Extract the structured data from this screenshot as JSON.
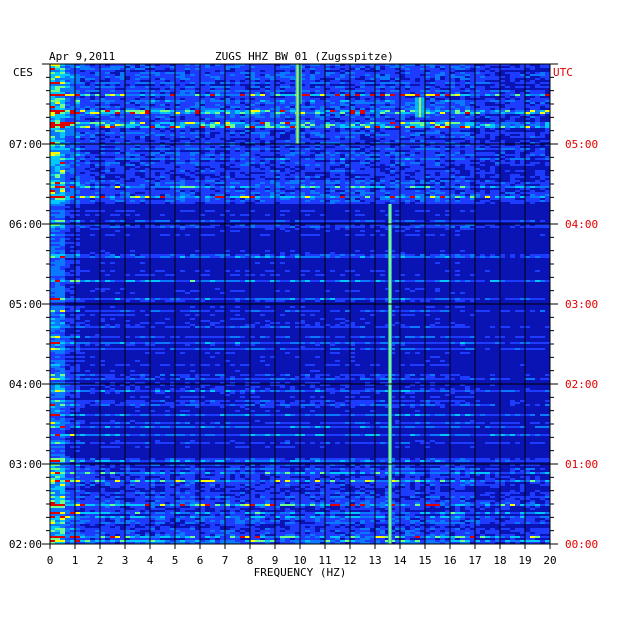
{
  "header": {
    "date": "Apr 9,2011",
    "station": "ZUGS HHZ BW 01 (Zugsspitze)"
  },
  "chart_data": {
    "type": "heatmap",
    "title": "ZUGS HHZ BW 01 (Zugsspitze)",
    "date": "Apr 9,2011",
    "xlabel": "FREQUENCY (HZ)",
    "xlim": [
      0,
      20
    ],
    "x_ticks": [
      "0",
      "1",
      "2",
      "3",
      "4",
      "5",
      "6",
      "7",
      "8",
      "9",
      "10",
      "11",
      "12",
      "13",
      "14",
      "15",
      "16",
      "17",
      "18",
      "19",
      "20"
    ],
    "left_axis_label": "CES",
    "right_axis_label": "UTC",
    "left_ticks": [
      "07:00",
      "06:00",
      "05:00",
      "04:00",
      "03:00",
      "02:00"
    ],
    "right_ticks": [
      "05:00",
      "04:00",
      "03:00",
      "02:00",
      "01:00",
      "00:00"
    ],
    "time_range_ces": [
      "02:00",
      "08:00"
    ],
    "colors": {
      "background": "#0a14b4",
      "low": "#1e3cff",
      "mid": "#00c8ff",
      "high": "#ffff00",
      "peak": "#e00000",
      "grid": "#000000",
      "utc_text": "#e00000"
    },
    "features": [
      {
        "name": "persistent-line",
        "freq_hz": 13.6,
        "from": "02:00",
        "to": "06:15"
      },
      {
        "name": "line",
        "freq_hz": 10.0,
        "from": "07:30",
        "to": "08:00"
      },
      {
        "name": "line",
        "freq_hz": 9.9,
        "from": "07:00",
        "to": "08:00"
      },
      {
        "name": "burst",
        "freq_hz": 14.8,
        "from": "07:20",
        "to": "07:35"
      }
    ]
  }
}
